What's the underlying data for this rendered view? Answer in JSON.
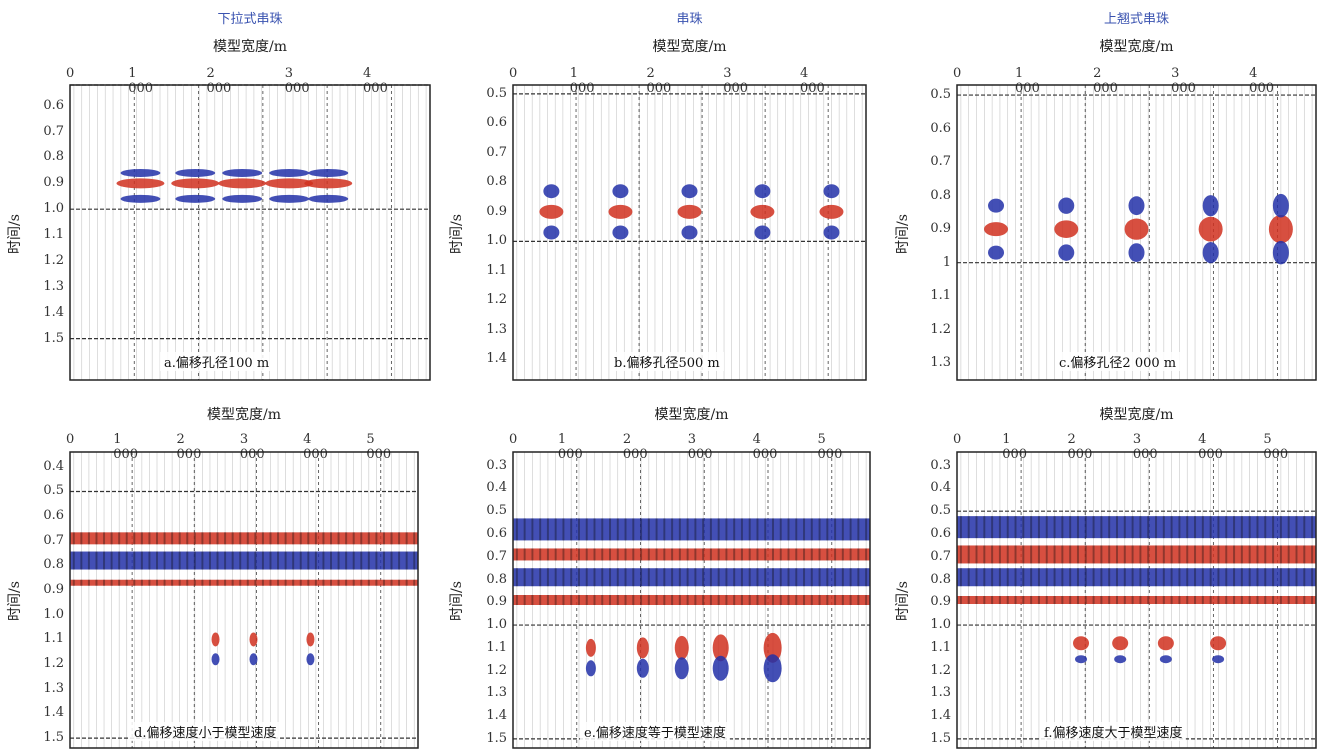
{
  "figure_titles": [
    "下拉式串珠",
    "串珠",
    "上翘式串珠"
  ],
  "x_axis_label": "模型宽度/m",
  "y_axis_label": "时间/s",
  "colors": {
    "positive": "#d0301e",
    "negative": "#2230a8",
    "trace": "#9a9a9a",
    "title": "#3a53b0"
  },
  "chart_data": [
    {
      "type": "heatmap",
      "title": "下拉式串珠",
      "caption": "a.偏移孔径100 m",
      "xlabel": "模型宽度/m",
      "ylabel": "时间/s",
      "x_ticks": [
        "0",
        "1 000",
        "2 000",
        "3 000",
        "4 000"
      ],
      "y_ticks": [
        "0.6",
        "0.7",
        "0.8",
        "0.9",
        "1.0",
        "1.1",
        "1.2",
        "1.3",
        "1.4",
        "1.5"
      ],
      "xlim": [
        0,
        4600
      ],
      "ylim": [
        0.52,
        1.66
      ],
      "reflector_times": [
        0.52,
        1.0,
        1.5
      ]
    },
    {
      "type": "heatmap",
      "title": "串珠",
      "caption": "b.偏移孔径500 m",
      "xlabel": "模型宽度/m",
      "ylabel": "时间/s",
      "x_ticks": [
        "0",
        "1 000",
        "2 000",
        "3 000",
        "4 000"
      ],
      "y_ticks": [
        "0.5",
        "0.6",
        "0.7",
        "0.8",
        "0.9",
        "1.0",
        "1.1",
        "1.2",
        "1.3",
        "1.4"
      ],
      "xlim": [
        0,
        4600
      ],
      "ylim": [
        0.47,
        1.47
      ],
      "reflector_times": [
        0.5,
        1.0
      ]
    },
    {
      "type": "heatmap",
      "title": "上翘式串珠",
      "caption": "c.偏移孔径2 000 m",
      "xlabel": "模型宽度/m",
      "ylabel": "时间/s",
      "x_ticks": [
        "0",
        "1 000",
        "2 000",
        "3 000",
        "4 000"
      ],
      "y_ticks": [
        "0.5",
        "0.6",
        "0.7",
        "0.8",
        "0.9",
        "1",
        "1.1",
        "1.2",
        "1.3"
      ],
      "xlim": [
        0,
        4600
      ],
      "ylim": [
        0.47,
        1.35
      ],
      "reflector_times": [
        0.5,
        1.0
      ]
    },
    {
      "type": "heatmap",
      "caption": "d.偏移速度小于模型速度",
      "xlabel": "模型宽度/m",
      "ylabel": "时间/s",
      "x_ticks": [
        "0",
        "1 000",
        "2 000",
        "3 000",
        "4 000",
        "5 000"
      ],
      "y_ticks": [
        "0.4",
        "0.5",
        "0.6",
        "0.7",
        "0.8",
        "0.9",
        "1.0",
        "1.1",
        "1.2",
        "1.3",
        "1.4",
        "1.5"
      ],
      "xlim": [
        0,
        5500
      ],
      "ylim": [
        0.34,
        1.54
      ],
      "reflector_times": [
        0.5,
        1.5
      ]
    },
    {
      "type": "heatmap",
      "caption": "e.偏移速度等于模型速度",
      "xlabel": "模型宽度/m",
      "ylabel": "时间/s",
      "x_ticks": [
        "0",
        "1 000",
        "2 000",
        "3 000",
        "4 000",
        "5 000"
      ],
      "y_ticks": [
        "0.3",
        "0.4",
        "0.5",
        "0.6",
        "0.7",
        "0.8",
        "0.9",
        "1.0",
        "1.1",
        "1.2",
        "1.3",
        "1.4",
        "1.5"
      ],
      "xlim": [
        0,
        5500
      ],
      "ylim": [
        0.24,
        1.54
      ],
      "reflector_times": [
        1.0,
        1.5
      ]
    },
    {
      "type": "heatmap",
      "caption": "f.偏移速度大于模型速度",
      "xlabel": "模型宽度/m",
      "ylabel": "时间/s",
      "x_ticks": [
        "0",
        "1 000",
        "2 000",
        "3 000",
        "4 000",
        "5 000"
      ],
      "y_ticks": [
        "0.3",
        "0.4",
        "0.5",
        "0.6",
        "0.7",
        "0.8",
        "0.9",
        "1.0",
        "1.1",
        "1.2",
        "1.3",
        "1.4",
        "1.5"
      ],
      "xlim": [
        0,
        5500
      ],
      "ylim": [
        0.24,
        1.54
      ],
      "reflector_times": [
        0.5,
        1.0,
        1.5
      ]
    }
  ]
}
